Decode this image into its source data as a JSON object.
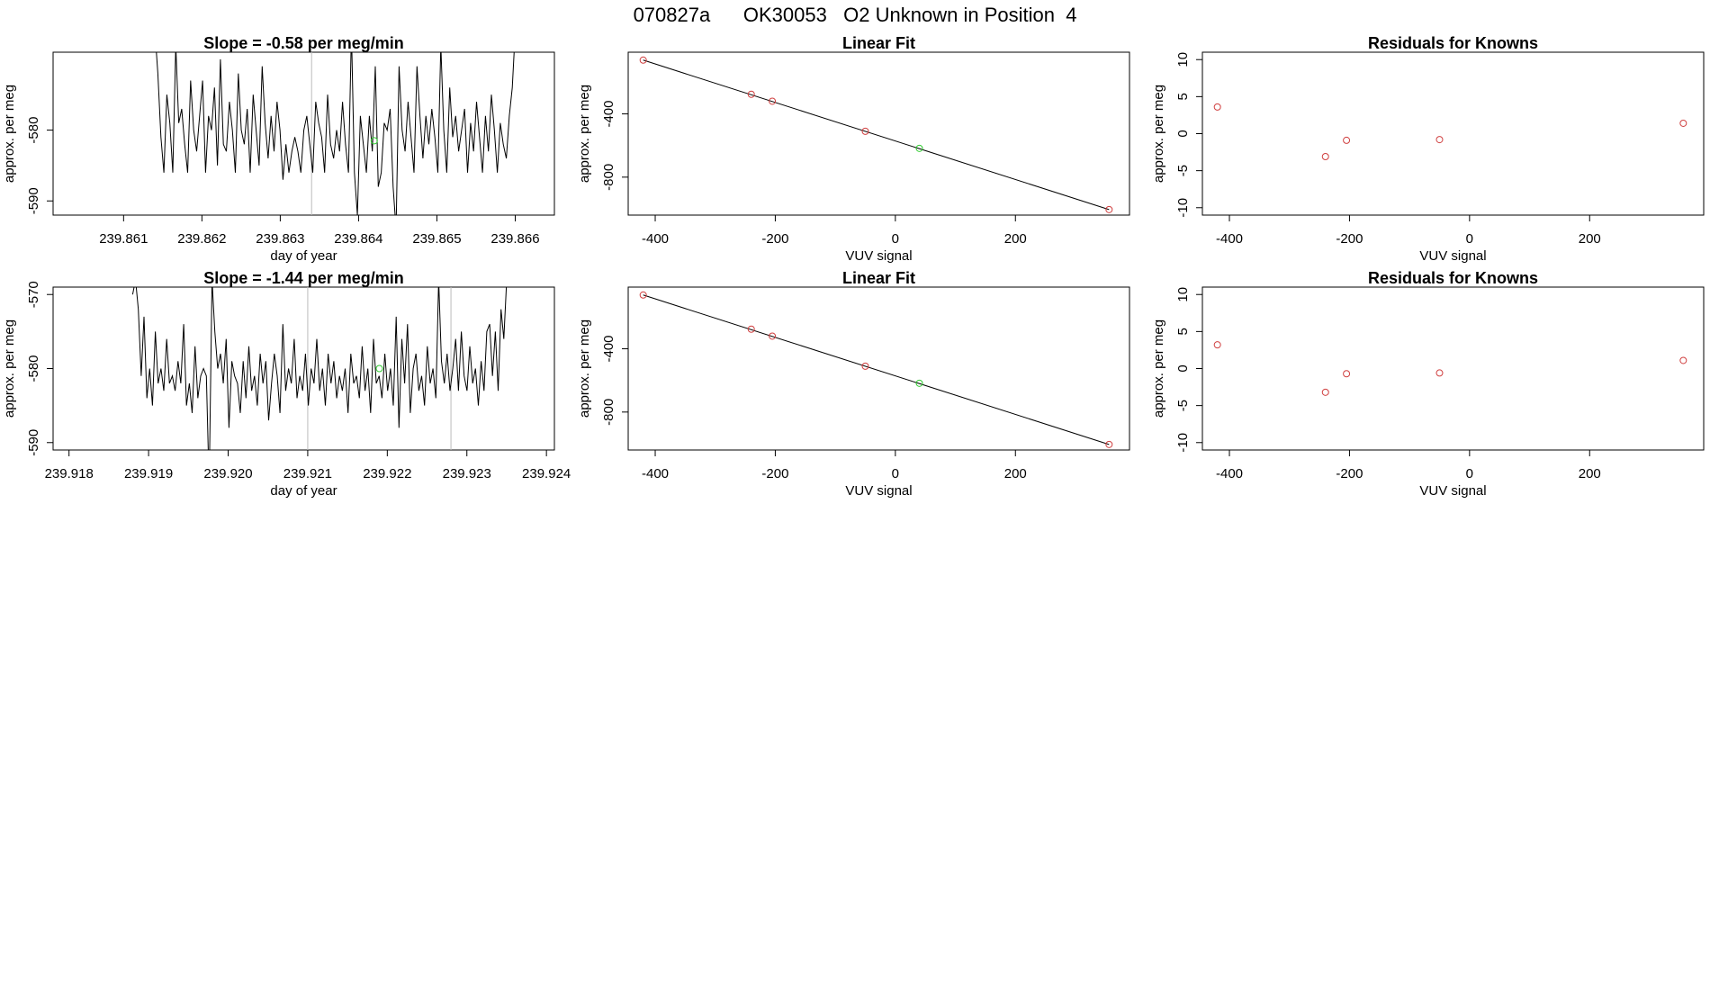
{
  "title": "070827a      OK30053   O2 Unknown in Position  4",
  "colors": {
    "line": "#000000",
    "known": "#d04040",
    "unknown": "#33cc33",
    "guide": "#bbbbbb"
  },
  "chart_data": [
    {
      "type": "line",
      "title": "Slope =  -0.58  per meg/min",
      "xlabel": "day of year",
      "ylabel": "approx. per meg",
      "xlim": [
        239.8601,
        239.8665
      ],
      "ylim": [
        -592,
        -569
      ],
      "xticks": [
        "239.861",
        "239.862",
        "239.863",
        "239.864",
        "239.865",
        "239.866"
      ],
      "yticks": [
        "-580",
        "-590"
      ],
      "vlines": [
        239.8634
      ],
      "highlight": {
        "x": 239.8642,
        "y": -581.5
      },
      "series": [
        {
          "x_start": 239.8614,
          "x_end": 239.866,
          "values": [
            -566,
            -572,
            -581,
            -586,
            -575,
            -579,
            -586,
            -568,
            -579,
            -577,
            -582,
            -586,
            -573,
            -580,
            -583,
            -578,
            -573,
            -586,
            -578,
            -580,
            -574,
            -585,
            -570,
            -582,
            -583,
            -576,
            -580,
            -586,
            -572,
            -580,
            -582,
            -577,
            -586,
            -575,
            -580,
            -585,
            -571,
            -579,
            -584,
            -578,
            -583,
            -576,
            -580,
            -587,
            -582,
            -586,
            -583,
            -581,
            -583,
            -586,
            -580,
            -578,
            -582,
            -586,
            -576,
            -579,
            -581,
            -586,
            -575,
            -582,
            -584,
            -580,
            -583,
            -576,
            -582,
            -586,
            -566,
            -586,
            -592,
            -578,
            -582,
            -586,
            -578,
            -583,
            -571,
            -588,
            -586,
            -579,
            -580,
            -577,
            -588,
            -594,
            -571,
            -580,
            -583,
            -576,
            -581,
            -586,
            -571,
            -578,
            -584,
            -578,
            -582,
            -577,
            -581,
            -586,
            -568,
            -580,
            -586,
            -574,
            -581,
            -578,
            -583,
            -580,
            -577,
            -586,
            -579,
            -583,
            -576,
            -581,
            -586,
            -578,
            -583,
            -575,
            -580,
            -586,
            -579,
            -582,
            -584,
            -578,
            -574,
            -566
          ]
        }
      ]
    },
    {
      "type": "scatter",
      "title": "Linear Fit",
      "xlabel": "VUV signal",
      "ylabel": "approx. per meg",
      "xlim": [
        -445,
        390
      ],
      "ylim": [
        -1040,
        -10
      ],
      "xticks": [
        "-400",
        "-200",
        "0",
        "200"
      ],
      "yticks": [
        "-400",
        "-800"
      ],
      "fit": {
        "x": [
          -420,
          356
        ],
        "y": [
          -60,
          -1005
        ]
      },
      "series": [
        {
          "name": "knowns",
          "x": [
            -420,
            -240,
            -205,
            -50,
            356
          ],
          "y": [
            -60,
            -276,
            -320,
            -510,
            -1005
          ]
        }
      ],
      "unknown": {
        "x": 40,
        "y": -618
      }
    },
    {
      "type": "scatter",
      "title": "Residuals for Knowns",
      "xlabel": "VUV signal",
      "ylabel": "approx. per meg",
      "xlim": [
        -445,
        390
      ],
      "ylim": [
        -11,
        11
      ],
      "xticks": [
        "-400",
        "-200",
        "0",
        "200"
      ],
      "yticks": [
        "10",
        "5",
        "0",
        "-5",
        "-10"
      ],
      "series": [
        {
          "name": "residuals",
          "x": [
            -420,
            -240,
            -205,
            -50,
            356
          ],
          "y": [
            3.6,
            -3.1,
            -0.9,
            -0.8,
            1.4
          ]
        }
      ]
    },
    {
      "type": "line",
      "title": "Slope =  -1.44  per meg/min",
      "xlabel": "day of year",
      "ylabel": "approx. per meg",
      "xlim": [
        239.9178,
        239.9241
      ],
      "ylim": [
        -591,
        -569
      ],
      "xticks": [
        "239.918",
        "239.919",
        "239.920",
        "239.921",
        "239.922",
        "239.923",
        "239.924"
      ],
      "yticks": [
        "-570",
        "-580",
        "-590"
      ],
      "vlines": [
        239.921,
        239.9228
      ],
      "highlight": {
        "x": 239.9219,
        "y": -580
      },
      "series": [
        {
          "x_start": 239.9188,
          "x_end": 239.9235,
          "values": [
            -570,
            -568,
            -572,
            -581,
            -573,
            -584,
            -580,
            -585,
            -575,
            -582,
            -580,
            -583,
            -576,
            -582,
            -581,
            -583,
            -579,
            -582,
            -574,
            -585,
            -582,
            -586,
            -577,
            -584,
            -581,
            -580,
            -581,
            -596,
            -568,
            -575,
            -580,
            -578,
            -582,
            -576,
            -588,
            -579,
            -581,
            -582,
            -586,
            -579,
            -584,
            -577,
            -583,
            -581,
            -585,
            -578,
            -582,
            -579,
            -587,
            -582,
            -578,
            -581,
            -586,
            -574,
            -583,
            -580,
            -582,
            -576,
            -584,
            -581,
            -583,
            -578,
            -585,
            -580,
            -582,
            -576,
            -583,
            -580,
            -585,
            -578,
            -582,
            -579,
            -584,
            -581,
            -583,
            -580,
            -586,
            -578,
            -582,
            -581,
            -584,
            -577,
            -583,
            -580,
            -586,
            -576,
            -582,
            -581,
            -584,
            -578,
            -583,
            -580,
            -585,
            -573,
            -588,
            -576,
            -582,
            -574,
            -586,
            -580,
            -578,
            -583,
            -581,
            -585,
            -577,
            -582,
            -580,
            -584,
            -568,
            -579,
            -582,
            -578,
            -583,
            -580,
            -576,
            -583,
            -575,
            -581,
            -583,
            -577,
            -582,
            -580,
            -585,
            -579,
            -583,
            -575,
            -574,
            -581,
            -575,
            -583,
            -572,
            -576,
            -568
          ]
        }
      ]
    },
    {
      "type": "scatter",
      "title": "Linear Fit",
      "xlabel": "VUV signal",
      "ylabel": "approx. per meg",
      "xlim": [
        -445,
        390
      ],
      "ylim": [
        -1040,
        -10
      ],
      "xticks": [
        "-400",
        "-200",
        "0",
        "200"
      ],
      "yticks": [
        "-400",
        "-800"
      ],
      "fit": {
        "x": [
          -420,
          356
        ],
        "y": [
          -60,
          -1005
        ]
      },
      "series": [
        {
          "name": "knowns",
          "x": [
            -420,
            -240,
            -205,
            -50,
            356
          ],
          "y": [
            -60,
            -276,
            -320,
            -510,
            -1005
          ]
        }
      ],
      "unknown": {
        "x": 40,
        "y": -618
      }
    },
    {
      "type": "scatter",
      "title": "Residuals for Knowns",
      "xlabel": "VUV signal",
      "ylabel": "approx. per meg",
      "xlim": [
        -445,
        390
      ],
      "ylim": [
        -11,
        11
      ],
      "xticks": [
        "-400",
        "-200",
        "0",
        "200"
      ],
      "yticks": [
        "10",
        "5",
        "0",
        "-5",
        "-10"
      ],
      "series": [
        {
          "name": "residuals",
          "x": [
            -420,
            -240,
            -205,
            -50,
            356
          ],
          "y": [
            3.2,
            -3.2,
            -0.7,
            -0.6,
            1.1
          ]
        }
      ]
    }
  ]
}
